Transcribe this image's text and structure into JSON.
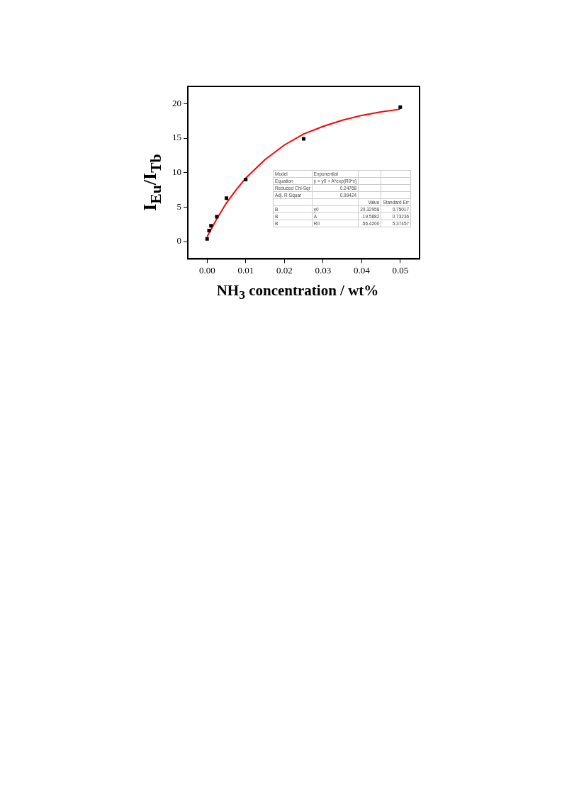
{
  "chart_data": {
    "type": "scatter",
    "xlabel": "NH$_{3}$ concentration / wt%",
    "ylabel": "I$_{Eu}$/I$_{Tb}$",
    "xlim": [
      -0.005,
      0.055
    ],
    "xticks": [
      {
        "value": 0,
        "label": "0.00"
      },
      {
        "value": 0.01,
        "label": "0.01"
      },
      {
        "value": 0.02,
        "label": "0.02"
      },
      {
        "value": 0.03,
        "label": "0.03"
      },
      {
        "value": 0.04,
        "label": "0.04"
      },
      {
        "value": 0.05,
        "label": "0.05"
      }
    ],
    "ylim": [
      -2.5,
      22.5
    ],
    "yticks": [
      0,
      5,
      10,
      15,
      20
    ],
    "grid": false,
    "series": [
      {
        "color": "#000000",
        "marker": "square",
        "x": [
          0,
          0.0005,
          0.001,
          0.0025,
          0.005,
          0.01,
          0.025,
          0.05
        ],
        "values": [
          0.4,
          1.6,
          2.3,
          3.6,
          6.3,
          9.0,
          14.9,
          19.5
        ]
      },
      {
        "type": "line",
        "color": "#ff0000",
        "marker": "none",
        "x": [
          0,
          0.0025,
          0.005,
          0.0075,
          0.01,
          0.015,
          0.02,
          0.025,
          0.03,
          0.035,
          0.04,
          0.045,
          0.05
        ],
        "values": [
          0.7,
          3.3,
          5.6,
          7.5,
          9.2,
          11.9,
          14.0,
          15.6,
          16.7,
          17.6,
          18.3,
          18.8,
          19.2
        ]
      }
    ],
    "annotations": [
      "Model\tExponential\t\t",
      "Equation\ty = y0 + A*exp(R0*x)\t\t",
      "Reduced Chi-Sqr\t0.24768\t\t",
      "Adj. R-Squar\t0.99424\t\t",
      "\t\tValue\tStandard Err",
      "B\ty0\t20.32958\t0.75017",
      "B\tA\t-19.5882\t0.73236",
      "B\tR0\t-56.4200\t5.37457"
    ]
  }
}
